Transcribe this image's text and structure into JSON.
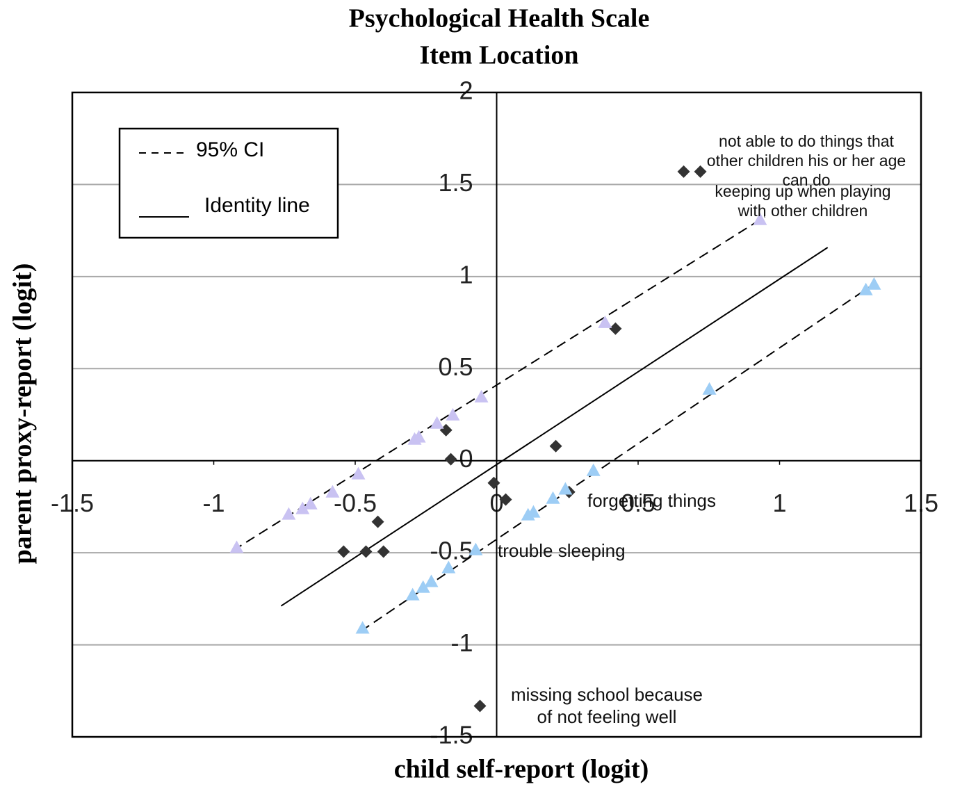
{
  "chart_data": {
    "type": "scatter",
    "title": [
      "Psychological Health Scale",
      "Item Location"
    ],
    "x_label": "child self-report (logit)",
    "y_label": "parent proxy-report (logit)",
    "xlim": [
      -1.5,
      1.5
    ],
    "ylim": [
      -1.5,
      2
    ],
    "xticks": [
      -1.5,
      -1,
      -0.5,
      0,
      0.5,
      1,
      1.5
    ],
    "yticks": [
      2,
      1.5,
      1,
      0.5,
      0,
      -0.5,
      -1,
      -1.5
    ],
    "grid": true,
    "series": [
      {
        "marker": "diamond",
        "color": "#333333",
        "x": [
          0.661,
          0.72,
          0.42,
          0.209,
          -0.179,
          -0.162,
          -0.01,
          0.032,
          0.256,
          -0.42,
          -0.541,
          -0.462,
          -0.4,
          -0.059
        ],
        "y": [
          1.57,
          1.57,
          0.717,
          0.079,
          0.166,
          0.008,
          -0.121,
          -0.211,
          -0.17,
          -0.332,
          -0.494,
          -0.494,
          -0.494,
          -1.332
        ]
      },
      {
        "marker": "triangle",
        "color": "#c9c2f2",
        "x": [
          0.931,
          0.383,
          -0.054,
          -0.155,
          -0.211,
          -0.275,
          -0.29,
          -0.489,
          -0.58,
          -0.658,
          -0.686,
          -0.735,
          -0.919
        ],
        "y": [
          1.306,
          0.747,
          0.343,
          0.245,
          0.2,
          0.125,
          0.113,
          -0.075,
          -0.174,
          -0.238,
          -0.264,
          -0.294,
          -0.475
        ]
      },
      {
        "marker": "triangle",
        "color": "#9dcdf5",
        "x": [
          1.334,
          1.305,
          0.752,
          0.342,
          0.243,
          0.199,
          0.13,
          0.111,
          -0.074,
          -0.17,
          -0.231,
          -0.26,
          -0.297,
          -0.474
        ],
        "y": [
          0.955,
          0.925,
          0.385,
          -0.057,
          -0.158,
          -0.208,
          -0.283,
          -0.298,
          -0.487,
          -0.585,
          -0.66,
          -0.691,
          -0.732,
          -0.913
        ]
      }
    ],
    "lines": [
      {
        "name": "95% CI",
        "dashed": true,
        "x": [
          -0.931,
          0.948,
          null,
          -0.479,
          1.329
        ],
        "y": [
          -0.487,
          1.325,
          null,
          -0.925,
          0.955
        ]
      },
      {
        "name": "Identity line",
        "dashed": false,
        "x": [
          -0.762,
          1.17
        ],
        "y": [
          -0.789,
          1.158
        ]
      }
    ],
    "annotations": [
      [
        "not able to do things that",
        "other children his or her age",
        "can do"
      ],
      [
        "keeping up when playing",
        "with other children"
      ],
      [
        "forgetting things"
      ],
      [
        "trouble sleeping"
      ],
      [
        "missing school because",
        "of not feeling well"
      ]
    ]
  }
}
